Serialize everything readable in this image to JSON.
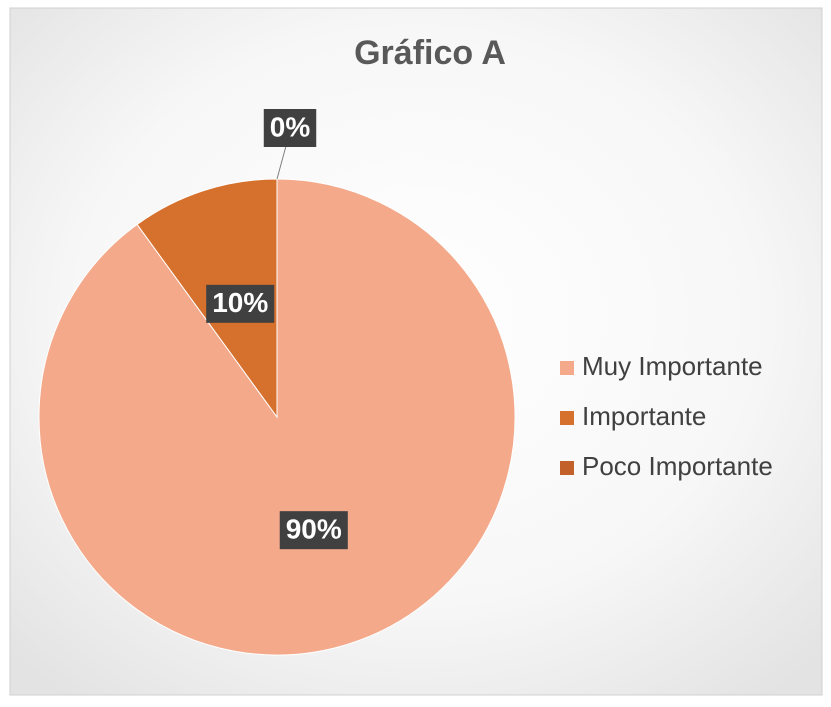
{
  "chart_data": {
    "type": "pie",
    "title": "Gráfico A",
    "categories": [
      "Muy Importante",
      "Importante",
      "Poco Importante"
    ],
    "values": [
      90,
      10,
      0
    ],
    "value_labels": [
      "90%",
      "10%",
      "0%"
    ],
    "colors": [
      "#f3a98a",
      "#d5702d",
      "#c3612b"
    ],
    "legend": "right"
  }
}
